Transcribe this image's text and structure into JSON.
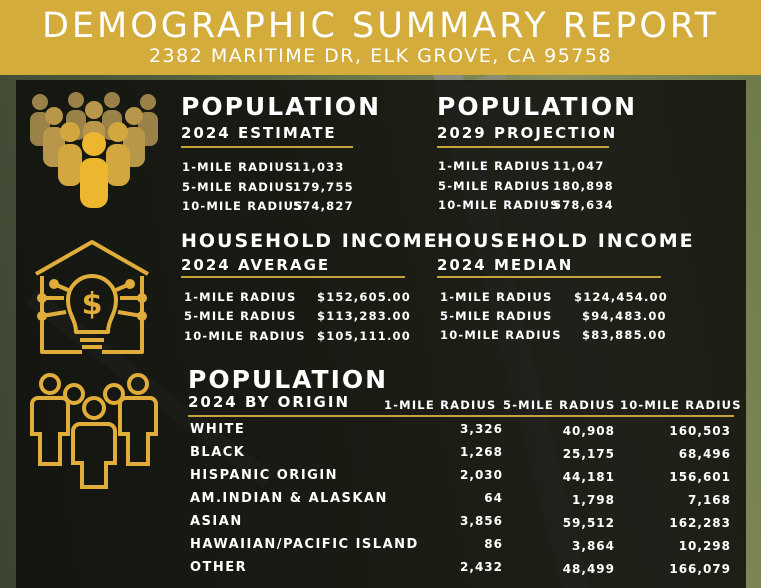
{
  "header": {
    "title": "DEMOGRAPHIC SUMMARY REPORT",
    "address": "2382 MARITIME DR, ELK GROVE, CA 95758"
  },
  "colors": {
    "gold": "#d4ac3c",
    "panel": "#0e0e0c",
    "icon_gold": "#e1ad3a"
  },
  "icons": [
    "people-crowd-icon",
    "house-lightbulb-dollar-icon",
    "people-group-icon"
  ],
  "population_2024": {
    "title": "POPULATION",
    "subtitle": "2024 ESTIMATE",
    "rows": [
      {
        "label": "1-MILE RADIUS",
        "value": "11,033"
      },
      {
        "label": "5-MILE RADIUS",
        "value": "179,755"
      },
      {
        "label": "10-MILE RADIUS",
        "value": "574,827"
      }
    ]
  },
  "population_2029": {
    "title": "POPULATION",
    "subtitle": "2029 PROJECTION",
    "rows": [
      {
        "label": "1-MILE RADIUS",
        "value": "11,047"
      },
      {
        "label": "5-MILE RADIUS",
        "value": "180,898"
      },
      {
        "label": "10-MILE RADIUS",
        "value": "578,634"
      }
    ]
  },
  "income_average": {
    "title": "HOUSEHOLD INCOME",
    "subtitle": "2024 AVERAGE",
    "rows": [
      {
        "label": "1-MILE RADIUS",
        "value": "$152,605.00"
      },
      {
        "label": "5-MILE RADIUS",
        "value": "$113,283.00"
      },
      {
        "label": "10-MILE RADIUS",
        "value": "$105,111.00"
      }
    ]
  },
  "income_median": {
    "title": "HOUSEHOLD INCOME",
    "subtitle": "2024 MEDIAN",
    "rows": [
      {
        "label": "1-MILE RADIUS",
        "value": "$124,454.00"
      },
      {
        "label": "5-MILE RADIUS",
        "value": "$94,483.00"
      },
      {
        "label": "10-MILE RADIUS",
        "value": "$83,885.00"
      }
    ]
  },
  "origin": {
    "title": "POPULATION",
    "subtitle": "2024 BY ORIGIN",
    "columns": [
      "1-MILE RADIUS",
      "5-MILE RADIUS",
      "10-MILE RADIUS"
    ],
    "rows": [
      {
        "label": "WHITE",
        "values": [
          "3,326",
          "40,908",
          "160,503"
        ]
      },
      {
        "label": "BLACK",
        "values": [
          "1,268",
          "25,175",
          "68,496"
        ]
      },
      {
        "label": "HISPANIC ORIGIN",
        "values": [
          "2,030",
          "44,181",
          "156,601"
        ]
      },
      {
        "label": "AM.INDIAN & ALASKAN",
        "values": [
          "64",
          "1,798",
          "7,168"
        ]
      },
      {
        "label": "ASIAN",
        "values": [
          "3,856",
          "59,512",
          "162,283"
        ]
      },
      {
        "label": "HAWAIIAN/PACIFIC ISLAND",
        "values": [
          "86",
          "3,864",
          "10,298"
        ]
      },
      {
        "label": "OTHER",
        "values": [
          "2,432",
          "48,499",
          "166,079"
        ]
      }
    ]
  }
}
